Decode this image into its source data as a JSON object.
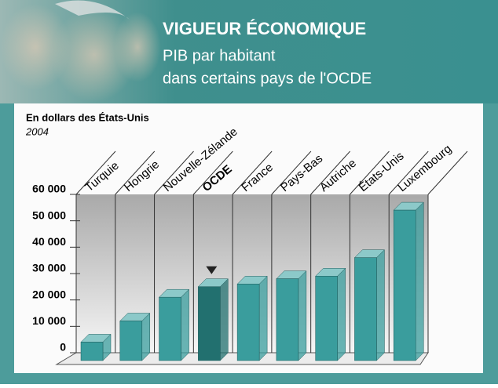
{
  "chart_data": {
    "type": "bar3d",
    "title": "VIGUEUR ÉCONOMIQUE",
    "subtitle": [
      "PIB par habitant",
      "dans certains pays de l'OCDE"
    ],
    "y_label": "En dollars des États-Unis",
    "note": "2004",
    "categories": [
      "Turquie",
      "Hongrie",
      "Nouvelle-Zélande",
      "OCDE",
      "France",
      "Pays-Bas",
      "Autriche",
      "États-Unis",
      "Luxembourg"
    ],
    "values": [
      7000,
      15000,
      24000,
      28000,
      29000,
      31000,
      32000,
      39000,
      57000
    ],
    "color": "#3a9d9d",
    "colors": [
      "#3a9d9d",
      "#3a9d9d",
      "#3a9d9d",
      "#22706f",
      "#3a9d9d",
      "#3a9d9d",
      "#3a9d9d",
      "#3a9d9d",
      "#3a9d9d"
    ],
    "ylim": [
      0,
      60000
    ],
    "yticks": [
      0,
      {
        "value": 10000,
        "label": "10 000"
      },
      {
        "value": 20000,
        "label": "20 000"
      },
      {
        "value": 30000,
        "label": "30 000"
      },
      {
        "value": 40000,
        "label": "40 000"
      },
      {
        "value": 50000,
        "label": "50 000"
      },
      {
        "value": 60000,
        "label": "60 000"
      }
    ],
    "grid": true
  }
}
